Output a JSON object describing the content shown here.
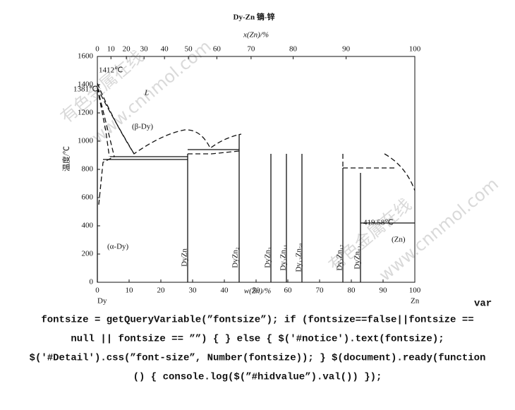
{
  "figure": {
    "title": "Dy-Zn  镝-锌",
    "top_axis": {
      "label": "x(Zn)/%",
      "ticks": [
        0,
        10,
        20,
        30,
        40,
        50,
        60,
        70,
        80,
        90,
        100
      ]
    },
    "bottom_axis": {
      "label": "w(Zn)/%",
      "ticks": [
        0,
        10,
        20,
        30,
        40,
        50,
        60,
        70,
        80,
        90,
        100
      ]
    },
    "y_axis": {
      "label": "温度/℃",
      "ticks": [
        0,
        200,
        400,
        600,
        800,
        1000,
        1200,
        1400,
        1600
      ]
    },
    "annotations": {
      "dy_melt": "1412℃",
      "dy_trans": "1381℃",
      "liquid": "L",
      "beta": "(β-Dy)",
      "alpha": "(α-Dy)",
      "zn_melt": "419.58℃",
      "zn": "(Zn)"
    },
    "phases": [
      "DyZn",
      "DyZn₂",
      "DyZn₃",
      "Dy₂Zn₁₁",
      "Dy₁₃Zn₅₈",
      "Dy₂Zn₁₇",
      "DyZn₁₂"
    ],
    "ends": [
      "Dy",
      "Zn"
    ],
    "watermarks": [
      "有色金属在线",
      "www.cnnmol.com"
    ]
  },
  "code_lines": [
    "var",
    "fontsize = getQueryVariable(”fontsize”); if (fontsize==false||fontsize ==",
    "null || fontsize == ””) { } else { $('#notice').text(fontsize);",
    "$('#Detail').css(”font-size”, Number(fontsize)); } $(document).ready(function",
    "() { console.log($(”#hidvalue”).val()) });"
  ]
}
